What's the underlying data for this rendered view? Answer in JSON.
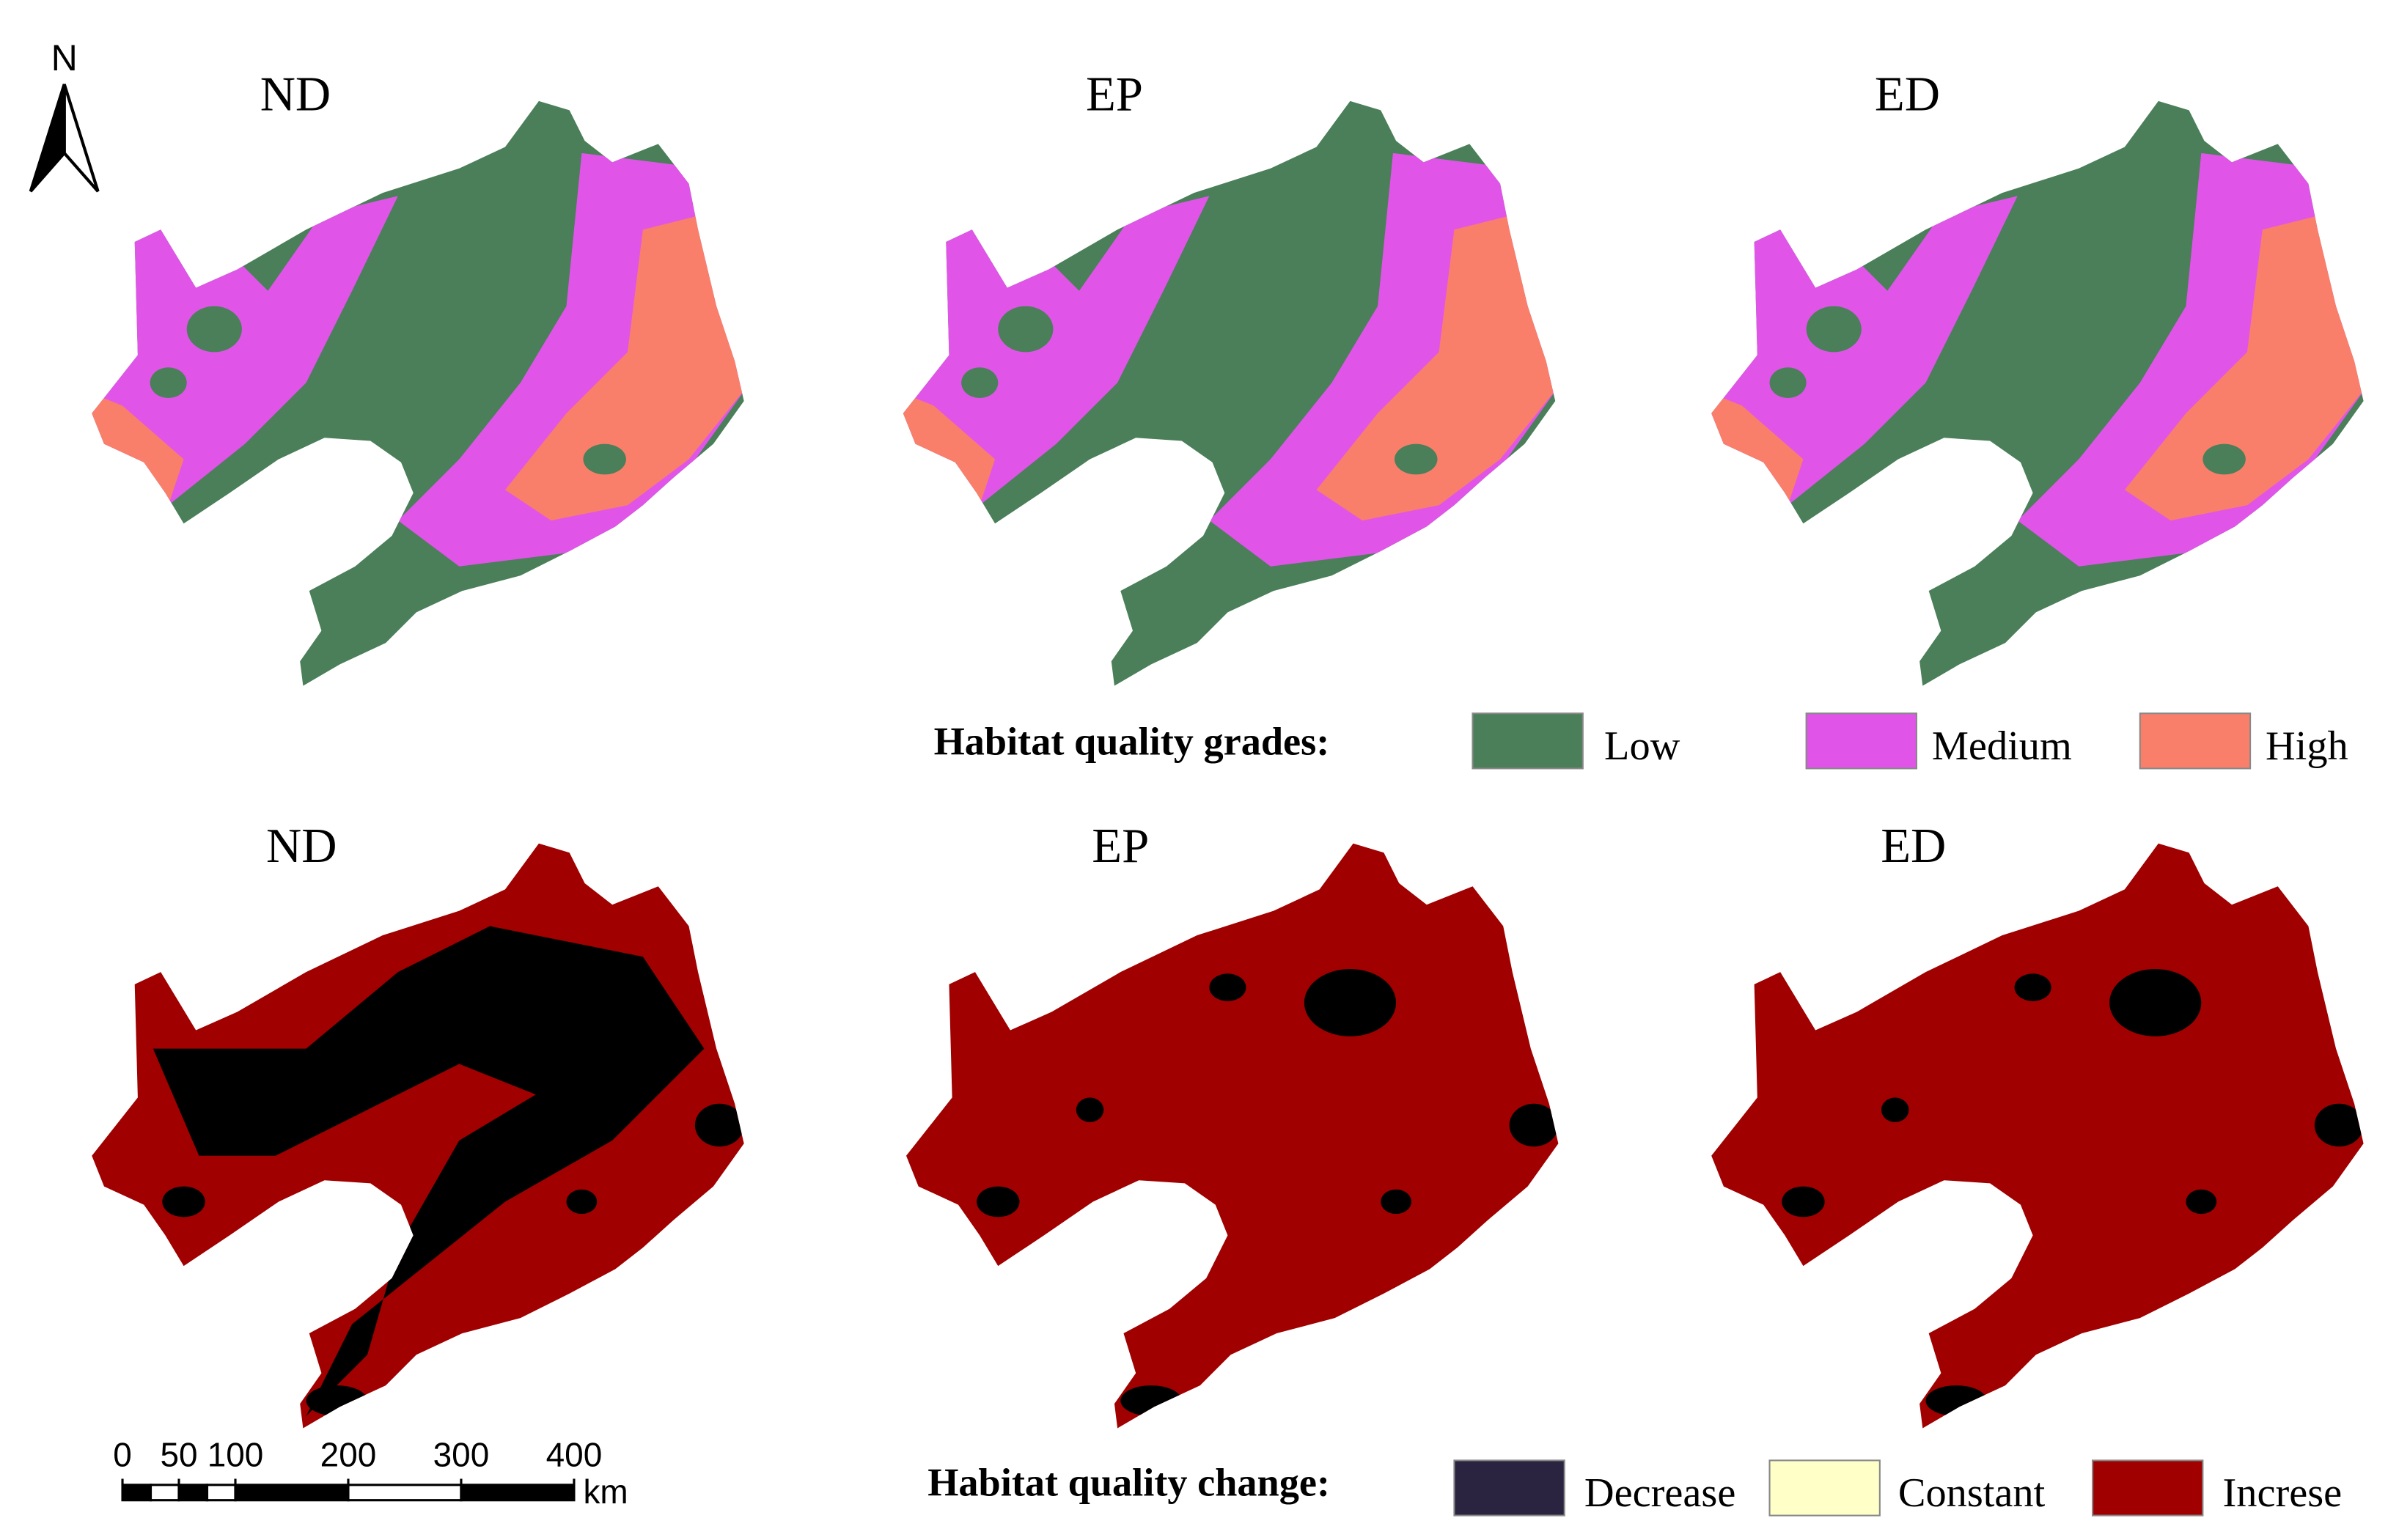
{
  "north": "N",
  "panels": [
    {
      "title": "ND"
    },
    {
      "title": "EP"
    },
    {
      "title": "ED"
    },
    {
      "title": "ND"
    },
    {
      "title": "EP"
    },
    {
      "title": "ED"
    }
  ],
  "legend_grades": {
    "title": "Habitat quality grades:",
    "items": [
      {
        "label": "Low",
        "color": "#4a7f59"
      },
      {
        "label": "Medium",
        "color": "#e055e8"
      },
      {
        "label": "High",
        "color": "#f97f6a"
      }
    ]
  },
  "legend_change": {
    "title": "Habitat quality change:",
    "items": [
      {
        "label": "Decrease",
        "color": "#2a2440"
      },
      {
        "label": "Constant",
        "color": "#ffffc8"
      },
      {
        "label": "Increse",
        "color": "#a00000"
      }
    ]
  },
  "scale_bar": {
    "ticks": [
      0,
      50,
      100,
      200,
      300,
      400
    ],
    "unit": "km"
  }
}
